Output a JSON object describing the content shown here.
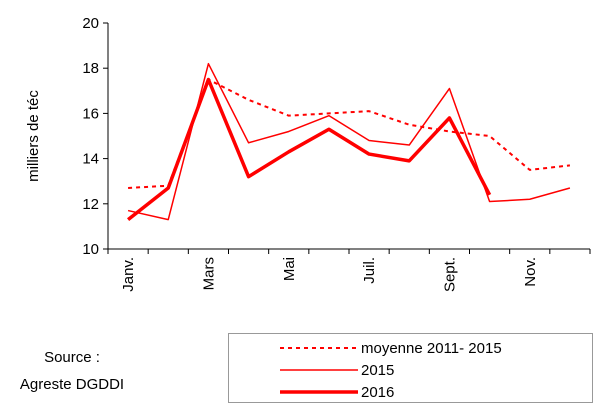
{
  "chart_data": {
    "type": "line",
    "y_label": "milliers de téc",
    "source": [
      "Source :",
      "Agreste DGDDI"
    ],
    "categories": [
      "Janv.",
      null,
      "Mars",
      null,
      "Mai",
      null,
      "Juil.",
      null,
      "Sept.",
      null,
      "Nov.",
      null
    ],
    "series": [
      {
        "name": "moyenne 2011- 2015",
        "color": "#ff0000",
        "style": "dotted",
        "width": 2,
        "values": [
          12.7,
          12.8,
          17.5,
          16.6,
          15.9,
          16.0,
          16.1,
          15.5,
          15.2,
          15.0,
          13.5,
          13.7
        ]
      },
      {
        "name": "2015",
        "color": "#ff0000",
        "style": "solid",
        "width": 1.5,
        "values": [
          11.7,
          11.3,
          18.2,
          14.7,
          15.2,
          15.9,
          14.8,
          14.6,
          17.1,
          12.1,
          12.2,
          12.7
        ]
      },
      {
        "name": "2016",
        "color": "#ff0000",
        "style": "solid",
        "width": 3.5,
        "values": [
          11.3,
          12.7,
          17.5,
          13.2,
          14.3,
          15.3,
          14.2,
          13.9,
          15.8,
          12.4,
          null,
          null
        ]
      }
    ],
    "ylim": [
      10,
      20
    ],
    "yticks": [
      10,
      12,
      14,
      16,
      18,
      20
    ],
    "grid": false
  }
}
